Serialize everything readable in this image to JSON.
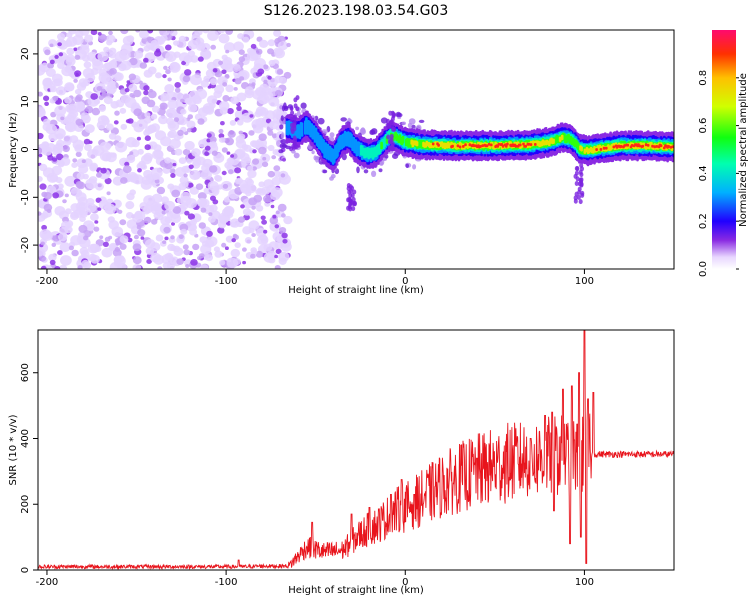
{
  "title": "S126.2023.198.03.54.G03",
  "chart_data": [
    {
      "type": "heatmap",
      "xlabel": "Height of straight line (km)",
      "ylabel": "Frequency (Hz)",
      "xlim": [
        -205,
        150
      ],
      "ylim": [
        -25,
        25
      ],
      "x_ticks": [
        -200,
        -100,
        0,
        100
      ],
      "y_ticks": [
        -20,
        -10,
        0,
        10,
        20
      ],
      "colorbar": {
        "label": "Normalized spectral amplitude",
        "ticks": [
          0.0,
          0.2,
          0.4,
          0.6,
          0.8
        ],
        "range": [
          0,
          1
        ],
        "colors": [
          "#ffffff",
          "#c9a6ff",
          "#8000ff",
          "#0000ff",
          "#00c8ff",
          "#00ff40",
          "#ffff00",
          "#ff8000",
          "#ff0000",
          "#ff0080"
        ]
      },
      "noise_region_x": [
        -205,
        -65
      ],
      "ridge": [
        {
          "x": -65,
          "y": 4.5
        },
        {
          "x": -60,
          "y": 3.5
        },
        {
          "x": -55,
          "y": 5
        },
        {
          "x": -50,
          "y": 3
        },
        {
          "x": -45,
          "y": 0
        },
        {
          "x": -40,
          "y": -1.5
        },
        {
          "x": -36,
          "y": 1.5
        },
        {
          "x": -32,
          "y": 2.5
        },
        {
          "x": -28,
          "y": 0.5
        },
        {
          "x": -24,
          "y": -0.5
        },
        {
          "x": -20,
          "y": -1
        },
        {
          "x": -16,
          "y": -0.5
        },
        {
          "x": -12,
          "y": 1.5
        },
        {
          "x": -8,
          "y": 3
        },
        {
          "x": -4,
          "y": 2.5
        },
        {
          "x": 0,
          "y": 1.5
        },
        {
          "x": 10,
          "y": 1
        },
        {
          "x": 30,
          "y": 0.8
        },
        {
          "x": 50,
          "y": 0.8
        },
        {
          "x": 70,
          "y": 1
        },
        {
          "x": 80,
          "y": 1.5
        },
        {
          "x": 88,
          "y": 2.5
        },
        {
          "x": 93,
          "y": 2
        },
        {
          "x": 98,
          "y": 0
        },
        {
          "x": 102,
          "y": -0.2
        },
        {
          "x": 110,
          "y": 0.3
        },
        {
          "x": 120,
          "y": 0.8
        },
        {
          "x": 135,
          "y": 0.8
        },
        {
          "x": 150,
          "y": 0.5
        }
      ],
      "ridge_peak_amplitude": [
        {
          "x": -65,
          "a": 0.3
        },
        {
          "x": -30,
          "a": 0.35
        },
        {
          "x": 0,
          "a": 0.6
        },
        {
          "x": 20,
          "a": 0.85
        },
        {
          "x": 60,
          "a": 0.95
        },
        {
          "x": 95,
          "a": 0.6
        },
        {
          "x": 110,
          "a": 0.9
        },
        {
          "x": 140,
          "a": 0.95
        }
      ]
    },
    {
      "type": "line",
      "xlabel": "Height of straight line (km)",
      "ylabel": "SNR (10 * v/v)",
      "xlim": [
        -205,
        150
      ],
      "ylim": [
        0,
        730
      ],
      "x_ticks": [
        -200,
        -100,
        0,
        100
      ],
      "y_ticks": [
        0,
        200,
        400,
        600
      ],
      "series": [
        {
          "color": "#e8141c",
          "envelope": [
            {
              "x": -205,
              "y": 10
            },
            {
              "x": -90,
              "y": 10
            },
            {
              "x": -80,
              "y": 12
            },
            {
              "x": -65,
              "y": 12
            },
            {
              "x": -55,
              "y": 70
            },
            {
              "x": -45,
              "y": 55
            },
            {
              "x": -35,
              "y": 60
            },
            {
              "x": -25,
              "y": 110
            },
            {
              "x": -15,
              "y": 140
            },
            {
              "x": -5,
              "y": 180
            },
            {
              "x": 0,
              "y": 190
            },
            {
              "x": 10,
              "y": 220
            },
            {
              "x": 20,
              "y": 255
            },
            {
              "x": 30,
              "y": 280
            },
            {
              "x": 40,
              "y": 300
            },
            {
              "x": 50,
              "y": 315
            },
            {
              "x": 60,
              "y": 330
            },
            {
              "x": 70,
              "y": 340
            },
            {
              "x": 80,
              "y": 345
            },
            {
              "x": 88,
              "y": 350
            },
            {
              "x": 95,
              "y": 340
            },
            {
              "x": 100,
              "y": 350
            },
            {
              "x": 105,
              "y": 352
            },
            {
              "x": 150,
              "y": 352
            }
          ],
          "spikes": [
            {
              "x": -93,
              "y": 30
            },
            {
              "x": -52,
              "y": 145
            },
            {
              "x": -30,
              "y": 170
            },
            {
              "x": -20,
              "y": 190
            },
            {
              "x": -8,
              "y": 230
            },
            {
              "x": -2,
              "y": 275
            },
            {
              "x": 5,
              "y": 230
            },
            {
              "x": 40,
              "y": 340
            },
            {
              "x": 70,
              "y": 400
            },
            {
              "x": 78,
              "y": 470
            },
            {
              "x": 82,
              "y": 480
            },
            {
              "x": 88,
              "y": 550
            },
            {
              "x": 93,
              "y": 560
            },
            {
              "x": 97,
              "y": 600
            },
            {
              "x": 100,
              "y": 730
            },
            {
              "x": 102,
              "y": 520
            },
            {
              "x": 105,
              "y": 540
            }
          ],
          "dips": [
            {
              "x": 83,
              "y": 180
            },
            {
              "x": 92,
              "y": 80
            },
            {
              "x": 98,
              "y": 100
            },
            {
              "x": 101,
              "y": 20
            }
          ]
        }
      ]
    }
  ]
}
